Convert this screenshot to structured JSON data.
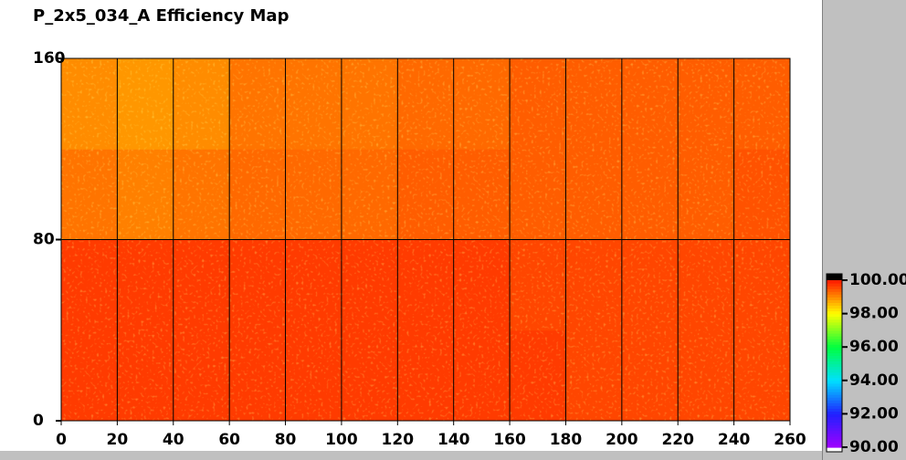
{
  "chart_data": {
    "type": "heatmap",
    "title": "P_2x5_034_A Efficiency Map",
    "xbins": [
      0,
      20,
      40,
      60,
      80,
      100,
      120,
      140,
      160,
      180,
      200,
      220,
      240,
      260
    ],
    "ybins": [
      0,
      40,
      80,
      120,
      160
    ],
    "values": [
      [
        99.7,
        99.7,
        99.7,
        99.7,
        99.7,
        99.7,
        99.7,
        99.7,
        99.7,
        99.6,
        99.6,
        99.6,
        99.6
      ],
      [
        99.7,
        99.7,
        99.7,
        99.7,
        99.7,
        99.7,
        99.7,
        99.7,
        99.6,
        99.6,
        99.6,
        99.6,
        99.6
      ],
      [
        99.2,
        99.1,
        99.2,
        99.3,
        99.3,
        99.3,
        99.4,
        99.4,
        99.4,
        99.4,
        99.4,
        99.4,
        99.5
      ],
      [
        99.0,
        98.9,
        99.0,
        99.2,
        99.2,
        99.2,
        99.3,
        99.3,
        99.4,
        99.4,
        99.4,
        99.4,
        99.4
      ]
    ],
    "xlim": [
      0,
      260
    ],
    "ylim": [
      0,
      160
    ],
    "xticks": [
      0,
      20,
      40,
      60,
      80,
      100,
      120,
      140,
      160,
      180,
      200,
      220,
      240,
      260
    ],
    "yticks": [
      0,
      80,
      160
    ],
    "grid": true,
    "grid_color": "#000000",
    "zlim": [
      90,
      100
    ],
    "zticks": [
      {
        "value": 100,
        "label": "100.00"
      },
      {
        "value": 98,
        "label": "98.00"
      },
      {
        "value": 96,
        "label": "96.00"
      },
      {
        "value": 94,
        "label": "94.00"
      },
      {
        "value": 92,
        "label": "92.00"
      },
      {
        "value": 90,
        "label": "90.00"
      }
    ],
    "colormap": [
      "#a000ff",
      "#2020ff",
      "#00e0ff",
      "#00ff40",
      "#ffff00",
      "#ff1800"
    ]
  }
}
